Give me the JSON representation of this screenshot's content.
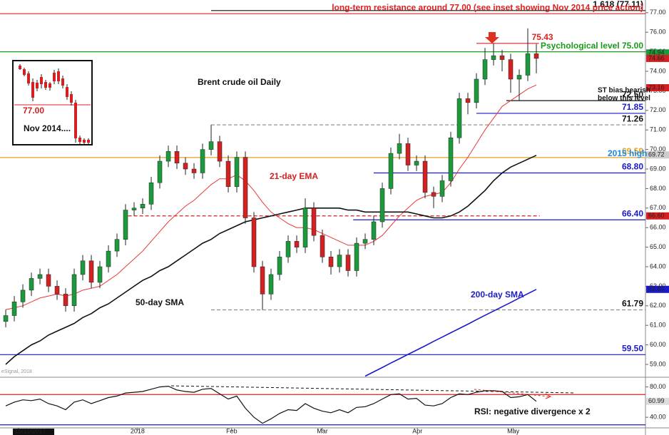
{
  "chart_data": {
    "type": "candlestick",
    "title": "Brent crude oil Daily",
    "xlim": [
      -0.67,
      74.75
    ],
    "ylim": [
      58.38,
      77.65
    ],
    "xticks": [
      {
        "value": 1.5,
        "label": "15/11/2017"
      },
      {
        "value": 15.4,
        "label": "2018"
      },
      {
        "value": 26.4,
        "label": "Feb"
      },
      {
        "value": 37,
        "label": "Mar"
      },
      {
        "value": 48.1,
        "label": "Apr"
      },
      {
        "value": 59.3,
        "label": "May"
      }
    ],
    "yticks": [
      {
        "value": 77,
        "label": "77.00"
      },
      {
        "value": 76,
        "label": "76.00"
      },
      {
        "value": 75,
        "label": "75.00"
      },
      {
        "value": 74,
        "label": "74.00"
      },
      {
        "value": 73,
        "label": "73.00"
      },
      {
        "value": 72,
        "label": "72.00"
      },
      {
        "value": 71,
        "label": "71.00"
      },
      {
        "value": 70,
        "label": "70.00"
      },
      {
        "value": 69,
        "label": "69.00"
      },
      {
        "value": 68,
        "label": "68.00"
      },
      {
        "value": 67,
        "label": "67.00"
      },
      {
        "value": 66,
        "label": "66.00"
      },
      {
        "value": 65,
        "label": "65.00"
      },
      {
        "value": 64,
        "label": "64.00"
      },
      {
        "value": 63,
        "label": "63.00"
      },
      {
        "value": 62,
        "label": "62.00"
      },
      {
        "value": 61,
        "label": "61.00"
      },
      {
        "value": 60,
        "label": "60.00"
      },
      {
        "value": 59,
        "label": "59.00"
      }
    ],
    "up_color": "#1a9a3a",
    "down_color": "#d42020",
    "open": [
      61.2,
      61.5,
      62.2,
      62.8,
      63.4,
      63.6,
      63.0,
      62.6,
      62.0,
      63.6,
      64.3,
      63.2,
      64.0,
      64.8,
      65.4,
      66.9,
      67.0,
      67.2,
      68.3,
      69.4,
      69.9,
      69.3,
      69.0,
      68.8,
      70.0,
      70.4,
      69.4,
      68.1,
      69.6,
      66.5,
      64.0,
      62.6,
      63.6,
      64.5,
      65.3,
      65.0,
      67.0,
      65.6,
      64.5,
      64.0,
      64.6,
      63.8,
      65.2,
      65.4,
      66.3,
      68.0,
      69.8,
      70.3,
      69.2,
      69.4,
      67.8,
      67.6,
      68.4,
      70.6,
      72.6,
      72.4,
      73.6,
      74.6,
      74.8,
      74.6,
      73.6,
      73.8,
      74.9
    ],
    "high": [
      61.8,
      62.5,
      63.1,
      63.7,
      63.9,
      63.9,
      63.3,
      62.9,
      63.9,
      64.6,
      64.6,
      64.3,
      65.1,
      65.7,
      67.2,
      67.3,
      67.5,
      68.6,
      69.7,
      70.2,
      70.2,
      69.6,
      69.3,
      70.3,
      71.26,
      70.7,
      69.7,
      69.9,
      69.9,
      66.8,
      64.3,
      63.9,
      64.8,
      65.6,
      65.6,
      67.5,
      67.3,
      65.9,
      64.8,
      64.9,
      64.9,
      65.5,
      65.7,
      66.6,
      68.3,
      70.1,
      70.8,
      70.6,
      69.7,
      69.7,
      68.1,
      68.7,
      70.9,
      72.9,
      72.9,
      73.9,
      75.2,
      75.43,
      75.1,
      74.9,
      74.1,
      76.2,
      75.4
    ],
    "low": [
      60.9,
      61.2,
      61.9,
      62.5,
      63.1,
      62.7,
      62.3,
      61.7,
      61.7,
      63.3,
      62.9,
      62.9,
      63.7,
      64.5,
      65.1,
      66.6,
      66.7,
      66.9,
      68.0,
      69.1,
      69.0,
      68.7,
      68.5,
      68.5,
      69.7,
      69.1,
      67.8,
      67.8,
      66.2,
      63.7,
      61.79,
      62.3,
      63.3,
      64.2,
      64.7,
      64.7,
      65.3,
      64.2,
      63.6,
      63.7,
      63.5,
      63.5,
      64.9,
      65.1,
      66.0,
      67.7,
      69.5,
      68.9,
      68.9,
      67.5,
      67.0,
      67.3,
      68.1,
      70.3,
      71.8,
      72.1,
      73.3,
      74.3,
      74.0,
      72.9,
      72.5,
      73.5,
      73.9
    ],
    "close": [
      61.5,
      62.2,
      62.8,
      63.4,
      63.6,
      63.0,
      62.6,
      62.0,
      63.6,
      64.3,
      63.2,
      64.0,
      64.8,
      65.4,
      66.9,
      67.0,
      67.2,
      68.3,
      69.4,
      69.9,
      69.3,
      69.0,
      68.8,
      70.0,
      70.4,
      69.4,
      68.1,
      69.6,
      66.5,
      64.0,
      62.6,
      63.6,
      64.5,
      65.3,
      65.0,
      67.0,
      65.6,
      64.5,
      64.0,
      64.6,
      63.8,
      65.2,
      65.4,
      66.3,
      68.0,
      69.8,
      70.3,
      69.2,
      69.4,
      67.8,
      67.6,
      68.4,
      70.6,
      72.6,
      72.4,
      73.6,
      74.6,
      74.8,
      74.6,
      73.6,
      73.8,
      74.9,
      74.66
    ],
    "lines": [
      {
        "color": "#e83a3a",
        "width": 1,
        "values": [
          61.8,
          61.9,
          62.0,
          62.2,
          62.4,
          62.5,
          62.6,
          62.5,
          62.6,
          62.8,
          62.9,
          63.0,
          63.3,
          63.6,
          64.0,
          64.4,
          64.8,
          65.3,
          65.8,
          66.3,
          66.7,
          67.1,
          67.4,
          67.8,
          68.2,
          68.5,
          68.5,
          68.7,
          68.4,
          67.9,
          67.3,
          66.8,
          66.5,
          66.2,
          66.0,
          66.0,
          65.9,
          65.7,
          65.5,
          65.3,
          65.1,
          65.1,
          65.1,
          65.3,
          65.6,
          66.1,
          66.6,
          67.0,
          67.4,
          67.6,
          67.7,
          67.8,
          68.3,
          69.0,
          69.6,
          70.3,
          71.0,
          71.6,
          72.2,
          72.5,
          72.8,
          73.1,
          73.3
        ]
      },
      {
        "color": "#111111",
        "width": 1.6,
        "values": [
          59.0,
          59.4,
          59.7,
          60.0,
          60.2,
          60.5,
          60.7,
          60.9,
          61.1,
          61.4,
          61.6,
          61.9,
          62.1,
          62.4,
          62.7,
          63.0,
          63.3,
          63.5,
          63.8,
          64.0,
          64.3,
          64.6,
          64.9,
          65.2,
          65.4,
          65.7,
          65.9,
          66.1,
          66.3,
          66.4,
          66.5,
          66.6,
          66.7,
          66.8,
          66.9,
          67.0,
          67.0,
          67.0,
          67.0,
          67.0,
          66.9,
          66.9,
          66.8,
          66.8,
          66.8,
          66.8,
          66.8,
          66.8,
          66.7,
          66.6,
          66.5,
          66.5,
          66.6,
          66.8,
          67.1,
          67.5,
          67.9,
          68.4,
          68.8,
          69.1,
          69.3,
          69.5,
          69.7
        ]
      },
      {
        "color": "#1a1acc",
        "width": 1.6,
        "values": [
          null,
          null,
          null,
          null,
          null,
          null,
          null,
          null,
          null,
          null,
          null,
          null,
          null,
          null,
          null,
          null,
          null,
          null,
          null,
          null,
          null,
          null,
          null,
          null,
          null,
          null,
          null,
          null,
          null,
          null,
          null,
          null,
          null,
          null,
          null,
          null,
          null,
          null,
          null,
          null,
          null,
          null,
          58.4,
          58.62,
          58.84,
          59.07,
          59.29,
          59.51,
          59.73,
          59.95,
          60.18,
          60.4,
          60.62,
          60.84,
          61.06,
          61.29,
          61.51,
          61.73,
          61.95,
          62.17,
          62.4,
          62.62,
          62.84
        ]
      }
    ],
    "levels": [
      {
        "value": 77.11,
        "label": "1.618 (77.11)",
        "color": "#111111",
        "start": 24
      },
      {
        "value": 76.95,
        "label": "long-term resistance around 77.00 (see inset showing Nov 2014 price action)",
        "color": "#e02020"
      },
      {
        "value": 75.43,
        "label": "75.43",
        "color": "#e02020",
        "start": 55,
        "end": 62.3
      },
      {
        "value": 75,
        "label": "Psychological level 75.00",
        "color": "#1a9a1a"
      },
      {
        "value": 72.5,
        "label": "72.50",
        "color": "#111111",
        "start": 58.5
      },
      {
        "value": 71.85,
        "label": "71.85",
        "color": "#1a1acc",
        "start": 55
      },
      {
        "value": 71.26,
        "label": "71.26",
        "color": "#888888",
        "start": 24,
        "dash": true
      },
      {
        "value": 69.59,
        "label": "69.59",
        "color": "#e8a020"
      },
      {
        "value": 68.8,
        "label": "68.80",
        "color": "#1a1acc",
        "start": 43
      },
      {
        "value": 66.6,
        "color": "#d42020",
        "start": 14.3,
        "end": 62.4,
        "dash": true
      },
      {
        "value": 66.4,
        "label": "66.40",
        "color": "#1a1acc",
        "start": 40.6
      },
      {
        "value": 61.79,
        "label": "61.79",
        "color": "#888888",
        "start": 24,
        "dash": true
      },
      {
        "value": 59.5,
        "label": "59.50",
        "color": "#1a1acc"
      }
    ],
    "tags": [
      {
        "value": 74.94,
        "color": "#1a9a3a"
      },
      {
        "value": 74.66,
        "color": "#d42020"
      },
      {
        "value": 73.16,
        "color": "#d42020"
      },
      {
        "value": 69.72,
        "color": "#cccccc"
      },
      {
        "value": 66.6,
        "label": "66.60",
        "color": "#d42020"
      },
      {
        "value": 62.84,
        "color": "#1a1acc"
      }
    ],
    "annotations": {
      "ema": "21-day EMA",
      "sma50": "50-day SMA",
      "sma200": "200-day SMA",
      "bias1": "ST bias bearish",
      "bias2": "below this level",
      "high2015": "2015 high",
      "rsi_note": "RSI: negative divergence x 2",
      "inset_level": "77.00",
      "inset_note": "Nov 2014....",
      "source": "eSignal, 2018"
    },
    "rsi": {
      "ylim": [
        26,
        90
      ],
      "yticks": [
        {
          "value": 80,
          "label": "80.00"
        },
        {
          "value": 40,
          "label": "40.00"
        }
      ],
      "levels": [
        70,
        30
      ],
      "color": "#111111",
      "values": [
        55,
        60,
        63,
        62,
        64,
        58,
        55,
        50,
        60,
        63,
        58,
        62,
        66,
        68,
        72,
        73,
        74,
        77,
        80,
        81,
        76,
        74,
        73,
        77,
        78,
        71,
        64,
        68,
        52,
        40,
        32,
        38,
        45,
        50,
        49,
        58,
        52,
        48,
        46,
        50,
        46,
        53,
        54,
        58,
        64,
        70,
        71,
        64,
        65,
        56,
        55,
        58,
        66,
        71,
        70,
        73,
        75,
        75,
        74,
        66,
        67,
        70,
        61
      ],
      "tag": {
        "value": 60.99,
        "color": "#dddddd"
      }
    }
  }
}
